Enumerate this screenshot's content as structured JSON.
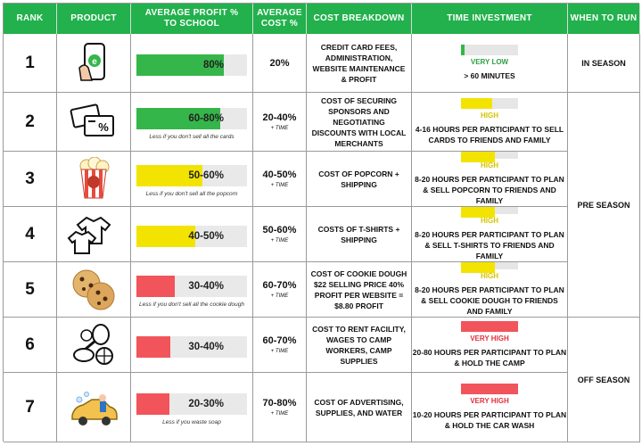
{
  "headers": {
    "rank": "RANK",
    "product": "PRODUCT",
    "profit": "AVERAGE PROFIT % TO SCHOOL",
    "cost": "AVERAGE COST %",
    "breakdown": "COST BREAKDOWN",
    "time": "TIME INVESTMENT",
    "when": "WHEN TO RUN"
  },
  "colors": {
    "header_green": "#22b14c",
    "green": "#35b64a",
    "yellow": "#f2e400",
    "red": "#f2545b",
    "very_low_text": "#2ea043",
    "high_text": "#d4c400",
    "very_high_text": "#e2313d"
  },
  "rows": [
    {
      "rank": "1",
      "icon": "phone-app-icon",
      "profit_label": "80%",
      "profit_fill": 0.79,
      "profit_color": "green",
      "note": "",
      "cost": "20%",
      "cost_time": "",
      "breakdown": "CREDIT CARD FEES, ADMINISTRATION, WEBSITE MAINTENANCE & PROFIT",
      "time_level": "VERY LOW",
      "time_fill": 0.06,
      "time_color": "green",
      "time_text": "> 60 MINUTES"
    },
    {
      "rank": "2",
      "icon": "discount-cards-icon",
      "profit_label": "60-80%",
      "profit_fill": 0.76,
      "profit_color": "green",
      "note": "Less if you don't sell all the cards",
      "cost": "20-40%",
      "cost_time": "+ TIME",
      "breakdown": "COST OF SECURING SPONSORS AND NEGOTIATING DISCOUNTS WITH LOCAL MERCHANTS",
      "time_level": "HIGH",
      "time_fill": 0.55,
      "time_color": "yellow",
      "time_text": "4-16 HOURS PER PARTICIPANT TO SELL CARDS TO FRIENDS AND FAMILY"
    },
    {
      "rank": "3",
      "icon": "popcorn-icon",
      "profit_label": "50-60%",
      "profit_fill": 0.6,
      "profit_color": "yellow",
      "note": "Less if you don't sell all the popcorn",
      "cost": "40-50%",
      "cost_time": "+ TIME",
      "breakdown": "COST OF POPCORN + SHIPPING",
      "time_level": "HIGH",
      "time_fill": 0.6,
      "time_color": "yellow",
      "time_text": "8-20 HOURS PER PARTICIPANT TO PLAN & SELL POPCORN TO FRIENDS AND FAMILY"
    },
    {
      "rank": "4",
      "icon": "t-shirts-icon",
      "profit_label": "40-50%",
      "profit_fill": 0.53,
      "profit_color": "yellow",
      "note": "",
      "cost": "50-60%",
      "cost_time": "+ TIME",
      "breakdown": "COSTS OF T-SHIRTS + SHIPPING",
      "time_level": "HIGH",
      "time_fill": 0.6,
      "time_color": "yellow",
      "time_text": "8-20 HOURS PER PARTICIPANT TO PLAN & SELL T-SHIRTS TO FRIENDS AND FAMILY"
    },
    {
      "rank": "5",
      "icon": "cookies-icon",
      "profit_label": "30-40%",
      "profit_fill": 0.35,
      "profit_color": "red",
      "note": "Less if you don't sell all the  cookie dough",
      "cost": "60-70%",
      "cost_time": "+ TIME",
      "breakdown": "COST OF COOKIE DOUGH $22 SELLING PRICE 40% PROFIT PER WEBSITE = $8.80 PROFIT",
      "time_level": "HIGH",
      "time_fill": 0.6,
      "time_color": "yellow",
      "time_text": "8-20 HOURS PER PARTICIPANT TO PLAN & SELL COOKIE DOUGH TO FRIENDS AND FAMILY"
    },
    {
      "rank": "6",
      "icon": "sports-balls-icon",
      "profit_label": "30-40%",
      "profit_fill": 0.31,
      "profit_color": "red",
      "note": "",
      "cost": "60-70%",
      "cost_time": "+ TIME",
      "breakdown": "COST TO RENT FACILITY, WAGES TO CAMP WORKERS, CAMP SUPPLIES",
      "time_level": "VERY HIGH",
      "time_fill": 1.0,
      "time_color": "red",
      "time_text": "20-80 HOURS PER PARTICIPANT TO PLAN & HOLD THE CAMP"
    },
    {
      "rank": "7",
      "icon": "car-wash-icon",
      "profit_label": "20-30%",
      "profit_fill": 0.3,
      "profit_color": "red",
      "note": "Less if you waste soap",
      "cost": "70-80%",
      "cost_time": "+ TIME",
      "breakdown": "COST OF ADVERTISING, SUPPLIES, AND WATER",
      "time_level": "VERY HIGH",
      "time_fill": 1.0,
      "time_color": "red",
      "time_text": "10-20 HOURS PER PARTICIPANT TO PLAN & HOLD THE CAR WASH"
    }
  ],
  "seasons": {
    "in": "IN SEASON",
    "pre": "PRE SEASON",
    "off": "OFF SEASON"
  }
}
